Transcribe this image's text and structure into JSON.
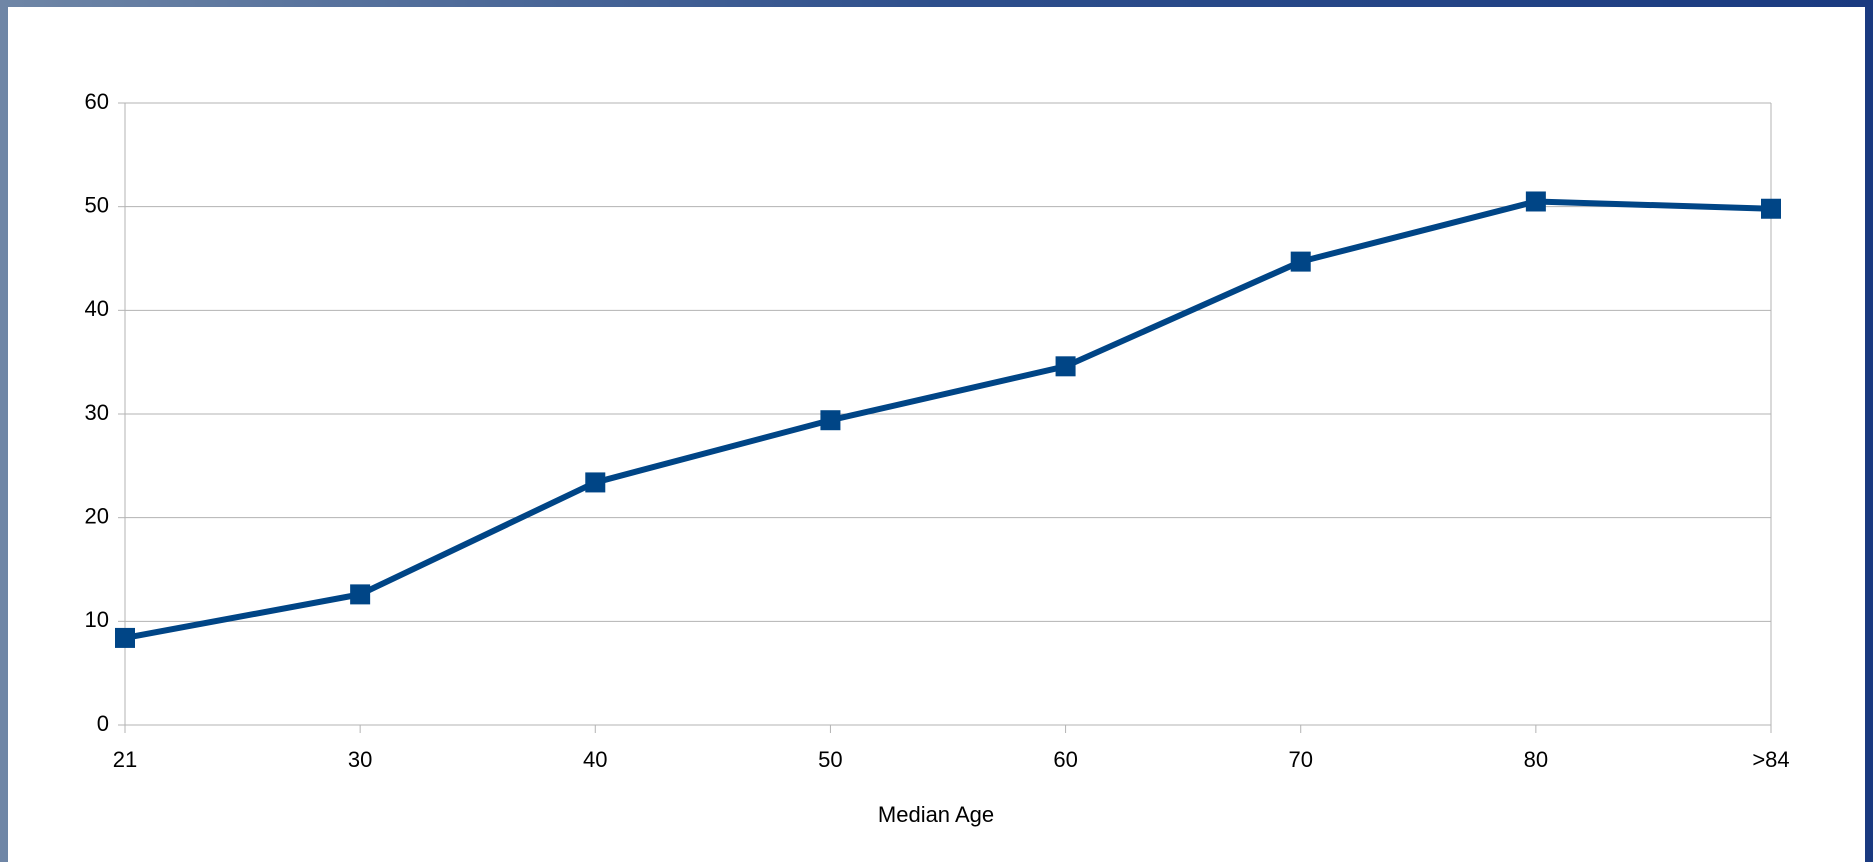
{
  "chart_data": {
    "type": "line",
    "x_label": "Median Age",
    "categories": [
      "21",
      "30",
      "40",
      "50",
      "60",
      "70",
      "80",
      ">84"
    ],
    "series": [
      {
        "color": "#004586",
        "values": [
          8.4,
          12.6,
          23.4,
          29.4,
          34.6,
          44.7,
          50.5,
          49.8
        ]
      }
    ],
    "ylim": [
      0,
      60
    ],
    "yticks": [
      0,
      10,
      20,
      30,
      40,
      50,
      60
    ],
    "grid": true
  }
}
